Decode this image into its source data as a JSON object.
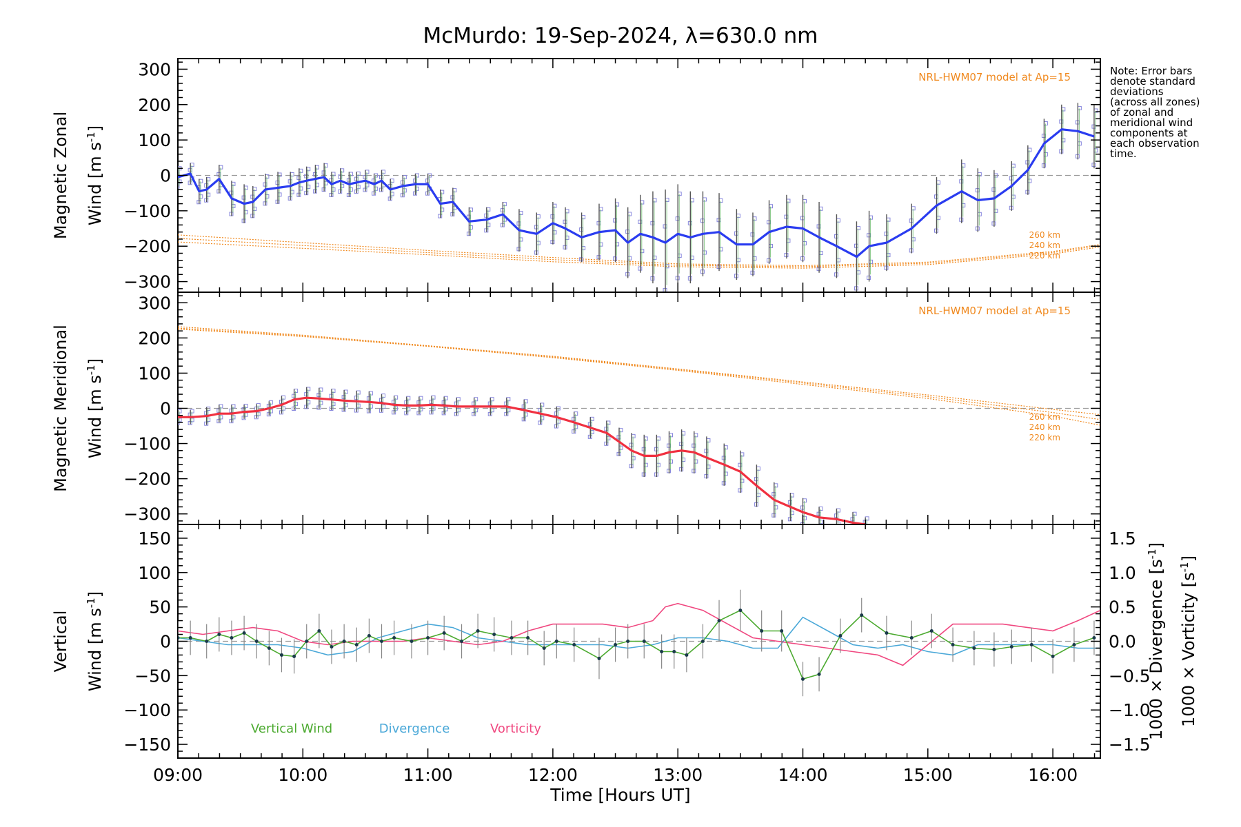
{
  "title": "McMurdo: 19-Sep-2024, λ=630.0 nm",
  "xlabel": "Time [Hours UT]",
  "x_ticks": [
    "09:00",
    "10:00",
    "11:00",
    "12:00",
    "13:00",
    "14:00",
    "15:00",
    "16:00"
  ],
  "note_lines": [
    "Note: Error bars",
    "denote standard",
    "deviations",
    "(across all zones)",
    "of zonal and",
    "meridional wind",
    "components at",
    "each observation",
    "time."
  ],
  "colors": {
    "zonal": "#2a3cf0",
    "meridional": "#f03040",
    "vertical": "#4caa30",
    "divergence": "#4aa8d8",
    "vorticity": "#f04880",
    "model": "#f08a20",
    "zone_markers": "#8888dd",
    "error_bars": "#555555"
  },
  "chart_data": [
    {
      "type": "line",
      "panel": "zonal",
      "ylabel_line1": "Magnetic Zonal",
      "ylabel_line2": "Wind [m s⁻¹]",
      "ylim": [
        -330,
        330
      ],
      "xlim_hours": [
        9.0,
        16.38
      ],
      "y_ticks": [
        "300",
        "200",
        "100",
        "0",
        "−100",
        "−200",
        "−300"
      ],
      "model_label": "NRL-HWM07 model at Ap=15",
      "model_altitudes": [
        "260 km",
        "240 km",
        "220 km"
      ],
      "zero_line": true,
      "series": [
        {
          "name": "Magnetic Zonal Wind",
          "x": [
            9.0,
            9.1,
            9.17,
            9.23,
            9.33,
            9.43,
            9.53,
            9.6,
            9.7,
            9.8,
            9.9,
            9.97,
            10.03,
            10.1,
            10.17,
            10.23,
            10.3,
            10.37,
            10.43,
            10.5,
            10.57,
            10.63,
            10.7,
            10.8,
            10.9,
            11.0,
            11.1,
            11.2,
            11.33,
            11.47,
            11.6,
            11.73,
            11.87,
            12.0,
            12.1,
            12.23,
            12.37,
            12.5,
            12.6,
            12.7,
            12.8,
            12.9,
            13.0,
            13.1,
            13.2,
            13.33,
            13.47,
            13.6,
            13.73,
            13.87,
            14.0,
            14.13,
            14.27,
            14.43,
            14.53,
            14.67,
            14.87,
            15.07,
            15.27,
            15.4,
            15.53,
            15.67,
            15.8,
            15.93,
            16.07,
            16.2,
            16.33
          ],
          "y": [
            -5,
            5,
            -45,
            -40,
            -10,
            -65,
            -80,
            -75,
            -40,
            -35,
            -30,
            -20,
            -15,
            -10,
            -5,
            -25,
            -15,
            -25,
            -20,
            -15,
            -25,
            -15,
            -40,
            -30,
            -25,
            -25,
            -80,
            -75,
            -130,
            -125,
            -110,
            -155,
            -165,
            -135,
            -150,
            -175,
            -160,
            -155,
            -190,
            -165,
            -175,
            -190,
            -165,
            -175,
            -165,
            -160,
            -195,
            -195,
            -160,
            -145,
            -150,
            -175,
            -200,
            -230,
            -200,
            -190,
            -150,
            -85,
            -45,
            -70,
            -65,
            -30,
            15,
            90,
            130,
            125,
            110
          ],
          "error": [
            30,
            30,
            35,
            35,
            40,
            50,
            55,
            45,
            45,
            45,
            40,
            40,
            40,
            40,
            40,
            35,
            35,
            35,
            30,
            30,
            30,
            30,
            30,
            30,
            30,
            30,
            40,
            40,
            40,
            35,
            35,
            60,
            60,
            60,
            60,
            70,
            80,
            90,
            100,
            110,
            130,
            150,
            140,
            130,
            120,
            110,
            100,
            90,
            90,
            90,
            95,
            100,
            90,
            100,
            100,
            80,
            70,
            80,
            90,
            90,
            80,
            70,
            70,
            70,
            70,
            80,
            90
          ]
        },
        {
          "name": "260 km",
          "x": [
            9.0,
            10.0,
            11.0,
            12.0,
            13.0,
            14.0,
            15.0,
            16.0,
            16.38
          ],
          "y": [
            -168,
            -190,
            -212,
            -232,
            -250,
            -255,
            -245,
            -215,
            -195
          ]
        },
        {
          "name": "240 km",
          "x": [
            9.0,
            10.0,
            11.0,
            12.0,
            13.0,
            14.0,
            15.0,
            16.0,
            16.38
          ],
          "y": [
            -178,
            -198,
            -218,
            -238,
            -254,
            -258,
            -248,
            -218,
            -198
          ]
        },
        {
          "name": "220 km",
          "x": [
            9.0,
            10.0,
            11.0,
            12.0,
            13.0,
            14.0,
            15.0,
            16.0,
            16.38
          ],
          "y": [
            -188,
            -206,
            -224,
            -244,
            -258,
            -262,
            -252,
            -222,
            -202
          ]
        }
      ]
    },
    {
      "type": "line",
      "panel": "meridional",
      "ylabel_line1": "Magnetic Meridional",
      "ylabel_line2": "Wind [m s⁻¹]",
      "ylim": [
        -330,
        330
      ],
      "xlim_hours": [
        9.0,
        16.38
      ],
      "y_ticks": [
        "300",
        "200",
        "100",
        "0",
        "−100",
        "−200",
        "−300"
      ],
      "model_label": "NRL-HWM07 model at Ap=15",
      "model_altitudes": [
        "260 km",
        "240 km",
        "220 km"
      ],
      "zero_line": true,
      "series": [
        {
          "name": "Magnetic Meridional Wind",
          "x": [
            9.0,
            9.1,
            9.23,
            9.33,
            9.43,
            9.53,
            9.63,
            9.73,
            9.83,
            9.93,
            10.03,
            10.13,
            10.23,
            10.33,
            10.43,
            10.53,
            10.63,
            10.73,
            10.83,
            10.93,
            11.03,
            11.13,
            11.23,
            11.37,
            11.5,
            11.63,
            11.77,
            11.9,
            12.03,
            12.17,
            12.3,
            12.43,
            12.53,
            12.63,
            12.73,
            12.83,
            12.93,
            13.03,
            13.13,
            13.23,
            13.37,
            13.5,
            13.63,
            13.77,
            13.9,
            14.0,
            14.13,
            14.27,
            14.4,
            14.5
          ],
          "y": [
            -25,
            -25,
            -22,
            -15,
            -15,
            -10,
            -8,
            0,
            10,
            25,
            30,
            28,
            25,
            22,
            20,
            18,
            15,
            10,
            8,
            8,
            10,
            8,
            5,
            5,
            5,
            5,
            -5,
            -15,
            -25,
            -40,
            -55,
            -70,
            -95,
            -120,
            -135,
            -135,
            -125,
            -120,
            -125,
            -140,
            -160,
            -180,
            -220,
            -260,
            -280,
            -295,
            -310,
            -315,
            -325,
            -330
          ],
          "error": [
            20,
            20,
            25,
            25,
            25,
            20,
            20,
            20,
            25,
            30,
            30,
            30,
            30,
            30,
            30,
            30,
            25,
            25,
            25,
            25,
            25,
            25,
            25,
            25,
            25,
            25,
            30,
            30,
            30,
            30,
            30,
            35,
            40,
            50,
            60,
            60,
            60,
            60,
            60,
            60,
            60,
            60,
            60,
            50,
            40,
            40,
            30,
            30,
            30,
            20
          ]
        },
        {
          "name": "260 km",
          "x": [
            9.0,
            10.0,
            11.0,
            12.0,
            13.0,
            14.0,
            15.0,
            16.0,
            16.38
          ],
          "y": [
            232,
            208,
            178,
            148,
            112,
            75,
            38,
            -3,
            -18
          ]
        },
        {
          "name": "240 km",
          "x": [
            9.0,
            10.0,
            11.0,
            12.0,
            13.0,
            14.0,
            15.0,
            16.0,
            16.38
          ],
          "y": [
            228,
            206,
            177,
            146,
            110,
            72,
            33,
            -12,
            -32
          ]
        },
        {
          "name": "220 km",
          "x": [
            9.0,
            10.0,
            11.0,
            12.0,
            13.0,
            14.0,
            15.0,
            16.0,
            16.38
          ],
          "y": [
            225,
            204,
            176,
            144,
            108,
            68,
            28,
            -22,
            -48
          ]
        }
      ]
    },
    {
      "type": "line",
      "panel": "vertical",
      "ylabel_line1": "Vertical",
      "ylabel_line2": "Wind [m s⁻¹]",
      "ylim": [
        -170,
        170
      ],
      "xlim_hours": [
        9.0,
        16.38
      ],
      "y_ticks": [
        "150",
        "100",
        "50",
        "0",
        "−50",
        "−100",
        "−150"
      ],
      "right_axis": {
        "ylim": [
          -1.7,
          1.7
        ],
        "ticks": [
          "1.5",
          "1.0",
          "0.5",
          "0.0",
          "−0.5",
          "−1.0",
          "−1.5"
        ],
        "label_divergence": "1000 × Divergence [s⁻¹]",
        "label_vorticity": "1000 × Vorticity [s⁻¹]"
      },
      "legend": [
        "Vertical Wind",
        "Divergence",
        "Vorticity"
      ],
      "zero_line": true,
      "series": [
        {
          "name": "Vertical Wind",
          "x": [
            9.0,
            9.1,
            9.23,
            9.33,
            9.43,
            9.53,
            9.63,
            9.73,
            9.83,
            9.93,
            10.03,
            10.13,
            10.23,
            10.33,
            10.43,
            10.53,
            10.63,
            10.73,
            10.87,
            11.0,
            11.13,
            11.27,
            11.4,
            11.53,
            11.67,
            11.8,
            11.93,
            12.03,
            12.17,
            12.37,
            12.5,
            12.6,
            12.73,
            12.87,
            12.97,
            13.07,
            13.2,
            13.33,
            13.5,
            13.67,
            13.83,
            14.0,
            14.13,
            14.3,
            14.47,
            14.67,
            14.87,
            15.03,
            15.2,
            15.37,
            15.53,
            15.67,
            15.83,
            16.0,
            16.17,
            16.33
          ],
          "y": [
            5,
            5,
            0,
            10,
            5,
            12,
            0,
            -10,
            -20,
            -22,
            0,
            15,
            -8,
            0,
            -5,
            8,
            0,
            5,
            0,
            5,
            12,
            0,
            15,
            10,
            5,
            5,
            -10,
            0,
            -5,
            -25,
            -5,
            0,
            0,
            -15,
            -15,
            -20,
            0,
            30,
            45,
            15,
            15,
            -55,
            -48,
            8,
            38,
            12,
            5,
            15,
            -5,
            -10,
            -12,
            -8,
            -5,
            -22,
            -5,
            5
          ],
          "error": [
            25,
            25,
            25,
            25,
            25,
            25,
            25,
            25,
            25,
            25,
            25,
            25,
            25,
            25,
            25,
            25,
            25,
            25,
            25,
            25,
            25,
            25,
            25,
            25,
            25,
            25,
            25,
            25,
            25,
            30,
            25,
            25,
            25,
            25,
            25,
            25,
            25,
            30,
            30,
            30,
            30,
            25,
            25,
            25,
            25,
            25,
            25,
            25,
            25,
            25,
            25,
            25,
            25,
            25,
            25,
            25
          ]
        },
        {
          "name": "Divergence",
          "axis": "right",
          "x": [
            9.0,
            9.2,
            9.4,
            9.6,
            9.8,
            10.0,
            10.2,
            10.4,
            10.6,
            10.8,
            11.0,
            11.2,
            11.4,
            11.6,
            11.8,
            12.0,
            12.2,
            12.4,
            12.6,
            12.8,
            13.0,
            13.2,
            13.4,
            13.6,
            13.8,
            14.0,
            14.2,
            14.4,
            14.6,
            14.8,
            15.0,
            15.2,
            15.4,
            15.6,
            15.8,
            16.0,
            16.2,
            16.38
          ],
          "y": [
            0.05,
            0.0,
            -0.05,
            -0.05,
            -0.05,
            -0.1,
            -0.2,
            -0.15,
            0.05,
            0.15,
            0.25,
            0.2,
            0.05,
            0.0,
            -0.05,
            -0.05,
            -0.05,
            -0.05,
            -0.1,
            -0.05,
            0.05,
            0.05,
            0.0,
            -0.1,
            -0.1,
            0.35,
            0.15,
            -0.05,
            -0.1,
            -0.05,
            -0.15,
            -0.2,
            -0.05,
            -0.05,
            -0.05,
            -0.05,
            -0.1,
            -0.1
          ]
        },
        {
          "name": "Vorticity",
          "axis": "right",
          "x": [
            9.0,
            9.2,
            9.4,
            9.6,
            9.8,
            10.0,
            10.2,
            10.4,
            10.6,
            10.8,
            11.0,
            11.2,
            11.4,
            11.6,
            11.8,
            12.0,
            12.2,
            12.4,
            12.6,
            12.8,
            12.9,
            13.0,
            13.2,
            13.4,
            13.6,
            13.8,
            14.0,
            14.2,
            14.4,
            14.6,
            14.8,
            15.0,
            15.2,
            15.4,
            15.6,
            15.8,
            16.0,
            16.2,
            16.38
          ],
          "y": [
            0.15,
            0.1,
            0.15,
            0.2,
            0.15,
            0.0,
            -0.05,
            0.0,
            0.0,
            0.0,
            0.05,
            0.0,
            -0.05,
            0.0,
            0.15,
            0.25,
            0.25,
            0.25,
            0.2,
            0.3,
            0.5,
            0.55,
            0.45,
            0.25,
            0.05,
            0.0,
            -0.05,
            -0.1,
            -0.15,
            -0.2,
            -0.35,
            -0.05,
            0.25,
            0.25,
            0.25,
            0.2,
            0.15,
            0.3,
            0.45
          ]
        }
      ]
    }
  ]
}
